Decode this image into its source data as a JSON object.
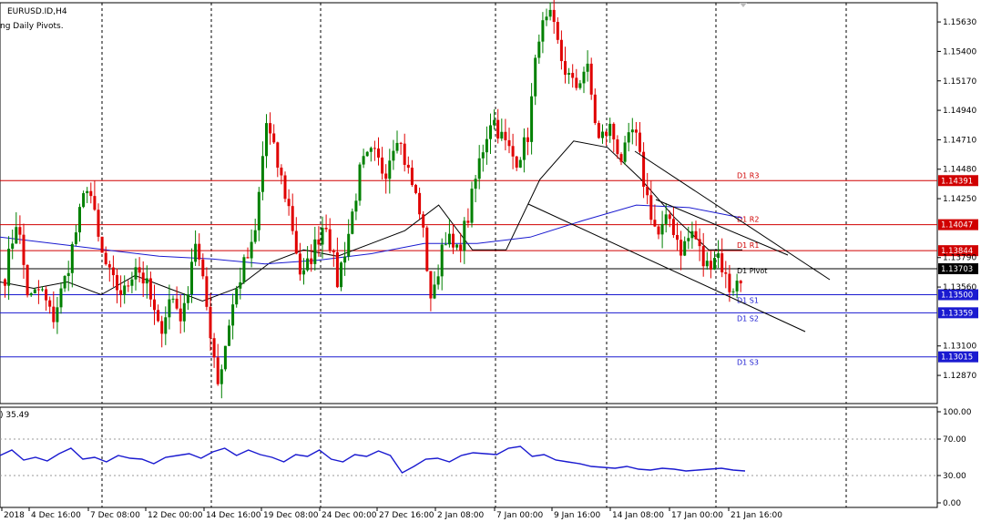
{
  "header": {
    "symbol": "EURUSD.ID,H4",
    "indicator": "ng Daily Pivots."
  },
  "sub_header": {
    "value": ") 35.49"
  },
  "colors": {
    "bull": "#008000",
    "bear": "#e00000",
    "ma_fast": "#000000",
    "ma_slow": "#1a1ad0",
    "resistance": "#d00000",
    "support": "#1a1ad0",
    "pivot": "#000000",
    "rsi": "#1a1ad0"
  },
  "chart_data": [
    {
      "type": "candlestick",
      "title": "EURUSD.ID,H4",
      "ylim": [
        1.1265,
        1.1578
      ],
      "y_ticks": [
        "1.15630",
        "1.15400",
        "1.15170",
        "1.14940",
        "1.14710",
        "1.14480",
        "1.14250",
        "1.13790",
        "1.13560",
        "1.13100",
        "1.12870"
      ],
      "x_ticks": [
        "2018",
        "4 Dec 16:00",
        "7 Dec 08:00",
        "12 Dec 00:00",
        "14 Dec 16:00",
        "19 Dec 08:00",
        "24 Dec 00:00",
        "27 Dec 16:00",
        "2 Jan 08:00",
        "7 Jan 00:00",
        "9 Jan 16:00",
        "14 Jan 08:00",
        "17 Jan 00:00",
        "21 Jan 16:00"
      ],
      "pivot_levels": [
        {
          "name": "D1 R3",
          "value": 1.14391,
          "label": "1.14391",
          "kind": "resistance"
        },
        {
          "name": "D1 R2",
          "value": 1.14047,
          "label": "1.14047",
          "kind": "resistance"
        },
        {
          "name": "D1 R1",
          "value": 1.13844,
          "label": "1.13844",
          "kind": "resistance"
        },
        {
          "name": "D1 Pivot",
          "value": 1.13703,
          "label": "1.13703",
          "kind": "pivot"
        },
        {
          "name": "D1 S1",
          "value": 1.135,
          "label": "1.13500",
          "kind": "support"
        },
        {
          "name": "D1 S2",
          "value": 1.13359,
          "label": "1.13359",
          "kind": "support"
        },
        {
          "name": "D1 S3",
          "value": 1.13015,
          "label": "1.13015",
          "kind": "support"
        }
      ],
      "waypoints": [
        1.1365,
        1.141,
        1.1345,
        1.1355,
        1.133,
        1.136,
        1.14,
        1.144,
        1.1385,
        1.136,
        1.135,
        1.1375,
        1.1355,
        1.132,
        1.135,
        1.133,
        1.1395,
        1.134,
        1.128,
        1.1335,
        1.137,
        1.139,
        1.1485,
        1.145,
        1.1415,
        1.136,
        1.1385,
        1.141,
        1.136,
        1.14,
        1.145,
        1.146,
        1.1445,
        1.1478,
        1.1445,
        1.1415,
        1.134,
        1.14,
        1.138,
        1.141,
        1.1455,
        1.149,
        1.147,
        1.1455,
        1.147,
        1.1555,
        1.1565,
        1.153,
        1.151,
        1.153,
        1.147,
        1.148,
        1.1455,
        1.148,
        1.143,
        1.1395,
        1.141,
        1.1385,
        1.14,
        1.137,
        1.1385,
        1.1355,
        1.136
      ],
      "ma_fast_waypoints": [
        1.136,
        1.1355,
        1.136,
        1.135,
        1.1365,
        1.1355,
        1.1345,
        1.1355,
        1.1375,
        1.1385,
        1.138,
        1.139,
        1.14,
        1.142,
        1.1385,
        1.1385,
        1.144,
        1.147,
        1.1465,
        1.144,
        1.141,
        1.1385,
        1.1385
      ],
      "ma_slow_waypoints": [
        1.1395,
        1.139,
        1.1385,
        1.138,
        1.1378,
        1.1374,
        1.1377,
        1.1382,
        1.139,
        1.139,
        1.1395,
        1.1408,
        1.142,
        1.1418,
        1.141
      ],
      "trendlines": [
        {
          "from": [
            580,
            224
          ],
          "to": [
            884,
            364
          ]
        },
        {
          "from": [
            697,
            166
          ],
          "to": [
            911,
            307
          ]
        },
        {
          "from": [
            720,
            219
          ],
          "to": [
            865,
            280
          ]
        }
      ]
    },
    {
      "type": "line",
      "title": ") 35.49",
      "ylim": [
        0,
        100
      ],
      "y_ticks": [
        "100.00",
        "70.00",
        "30.00",
        "0.00"
      ],
      "levels": [
        70,
        30
      ],
      "series": [
        {
          "values": [
            52,
            58,
            47,
            50,
            46,
            54,
            60,
            48,
            50,
            45,
            52,
            49,
            48,
            43,
            50,
            52,
            54,
            49,
            56,
            60,
            52,
            58,
            53,
            50,
            45,
            53,
            51,
            58,
            48,
            45,
            53,
            51,
            57,
            52,
            33,
            40,
            48,
            49,
            45,
            52,
            55,
            54,
            53,
            60,
            62,
            51,
            53,
            47,
            45,
            43,
            40,
            39,
            38,
            40,
            37,
            36,
            38,
            37,
            35,
            36,
            37,
            38,
            36,
            35
          ]
        }
      ]
    }
  ]
}
